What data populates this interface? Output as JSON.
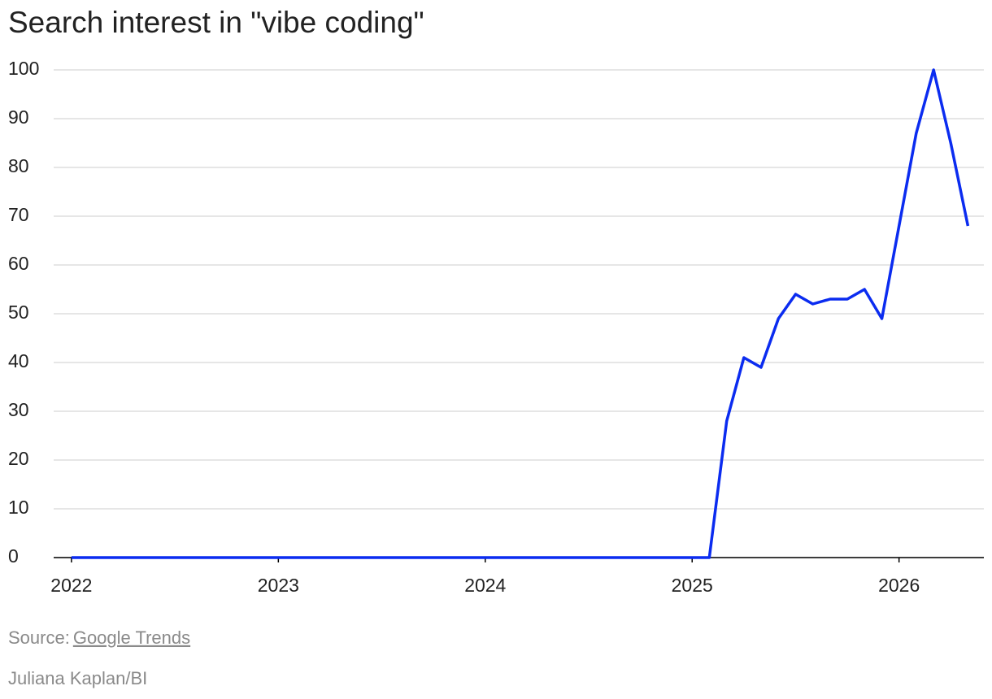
{
  "chart_data": {
    "type": "line",
    "title": "Search interest in \"vibe coding\"",
    "x": [
      2022,
      2022.083,
      2022.167,
      2022.25,
      2022.333,
      2022.417,
      2022.5,
      2022.583,
      2022.667,
      2022.75,
      2022.833,
      2022.917,
      2023,
      2023.083,
      2023.167,
      2023.25,
      2023.333,
      2023.417,
      2023.5,
      2023.583,
      2023.667,
      2023.75,
      2023.833,
      2023.917,
      2024,
      2024.083,
      2024.167,
      2024.25,
      2024.333,
      2024.417,
      2024.5,
      2024.583,
      2024.667,
      2024.75,
      2024.833,
      2024.917,
      2025,
      2025.083,
      2025.167,
      2025.25,
      2025.333,
      2025.417,
      2025.5,
      2025.583,
      2025.667,
      2025.75,
      2025.833,
      2025.917,
      2026,
      2026.083,
      2026.167,
      2026.25,
      2026.333
    ],
    "series": [
      {
        "color": "#0b2cf0",
        "values": [
          0,
          0,
          0,
          0,
          0,
          0,
          0,
          0,
          0,
          0,
          0,
          0,
          0,
          0,
          0,
          0,
          0,
          0,
          0,
          0,
          0,
          0,
          0,
          0,
          0,
          0,
          0,
          0,
          0,
          0,
          0,
          0,
          0,
          0,
          0,
          0,
          0,
          0,
          28,
          41,
          39,
          49,
          54,
          52,
          53,
          53,
          55,
          49,
          68,
          87,
          100,
          85,
          68
        ]
      }
    ],
    "xlim": [
      2021.914,
      2026.41
    ],
    "xticks": [
      2022,
      2023,
      2024,
      2025,
      2026
    ],
    "ylim": [
      0,
      100
    ],
    "yticks": [
      0,
      10,
      20,
      30,
      40,
      50,
      60,
      70,
      80,
      90,
      100
    ],
    "grid": true,
    "source_label": "Source:",
    "source_link": "Google Trends",
    "credit": "Juliana Kaplan/BI"
  }
}
